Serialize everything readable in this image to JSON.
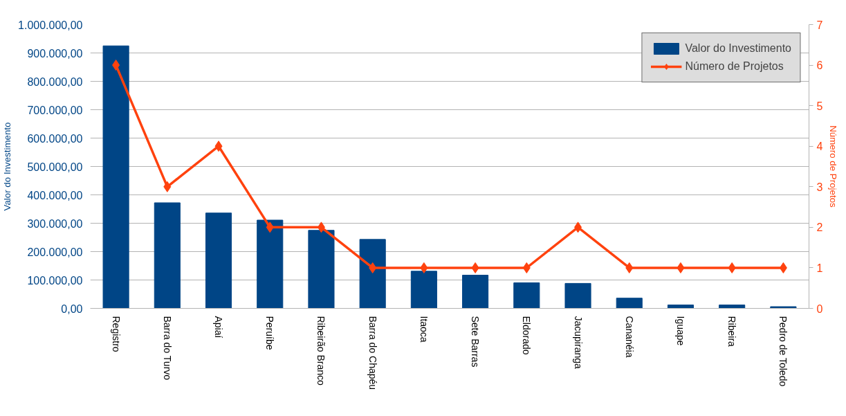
{
  "chart_data": {
    "type": "bar",
    "ylabel": "Valor do Investimento",
    "y2label": "Número de Projetos",
    "categories": [
      "Registro",
      "Barra do Turvo",
      "Apiaí",
      "Peruíbe",
      "Ribeirão Branco",
      "Barra do Chapéu",
      "Itaoca",
      "Sete Barras",
      "Eldorado",
      "Jacupiranga",
      "Cananéia",
      "Iguape",
      "Ribeira",
      "Pedro de Toledo"
    ],
    "series": [
      {
        "name": "Valor do Investimento",
        "color": "#004586",
        "values": [
          925000,
          372000,
          336000,
          311000,
          275000,
          243000,
          131000,
          117000,
          90000,
          88000,
          36000,
          12000,
          12000,
          6000
        ]
      },
      {
        "name": "Número de Projetos",
        "color": "#ff420e",
        "type": "line",
        "axis": "y2",
        "marker": "diamond",
        "values": [
          6,
          3,
          4,
          2,
          2,
          1,
          1,
          1,
          1,
          2,
          1,
          1,
          1,
          1
        ]
      }
    ],
    "ylim": [
      0,
      1000000
    ],
    "yticks": [
      {
        "value": 0,
        "label": "0,00"
      },
      {
        "value": 100000,
        "label": "100.000,00"
      },
      {
        "value": 200000,
        "label": "200.000,00"
      },
      {
        "value": 300000,
        "label": "300.000,00"
      },
      {
        "value": 400000,
        "label": "400.000,00"
      },
      {
        "value": 500000,
        "label": "500.000,00"
      },
      {
        "value": 600000,
        "label": "600.000,00"
      },
      {
        "value": 700000,
        "label": "700.000,00"
      },
      {
        "value": 800000,
        "label": "800.000,00"
      },
      {
        "value": 900000,
        "label": "900.000,00"
      },
      {
        "value": 1000000,
        "label": "1.000.000,00"
      }
    ],
    "y2lim": [
      0,
      7
    ],
    "y2ticks": [
      0,
      1,
      2,
      3,
      4,
      5,
      6,
      7
    ],
    "grid": "y",
    "legend": "top right"
  }
}
